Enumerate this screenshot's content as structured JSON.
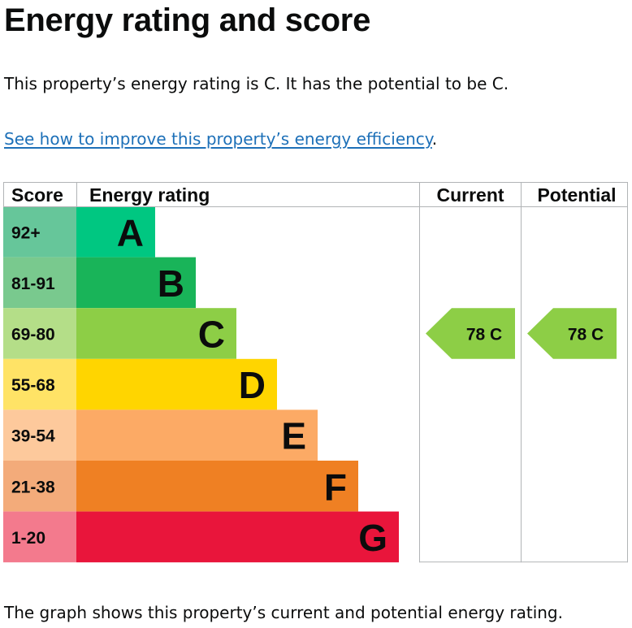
{
  "heading": "Energy rating and score",
  "summary": "This property’s energy rating is C. It has the potential to be C.",
  "improve_link": "See how to improve this property’s energy efficiency",
  "improve_link_suffix": ".",
  "footer": "The graph shows this property’s current and potential energy rating.",
  "chart_data": {
    "type": "bar",
    "columns": {
      "score": "Score",
      "rating": "Energy rating",
      "current": "Current",
      "potential": "Potential"
    },
    "bands": [
      {
        "range": "92+",
        "letter": "A",
        "score_color": "#66c69a",
        "bar_color": "#00c781"
      },
      {
        "range": "81-91",
        "letter": "B",
        "score_color": "#79c98e",
        "bar_color": "#19b459"
      },
      {
        "range": "69-80",
        "letter": "C",
        "score_color": "#b4de88",
        "bar_color": "#8dce46"
      },
      {
        "range": "55-68",
        "letter": "D",
        "score_color": "#ffe366",
        "bar_color": "#ffd500"
      },
      {
        "range": "39-54",
        "letter": "E",
        "score_color": "#fdc99c",
        "bar_color": "#fcaa65"
      },
      {
        "range": "21-38",
        "letter": "F",
        "score_color": "#f3ab7a",
        "bar_color": "#ef8023"
      },
      {
        "range": "1-20",
        "letter": "G",
        "score_color": "#f37a8d",
        "bar_color": "#e9153b"
      }
    ],
    "current": {
      "score": 78,
      "letter": "C",
      "label": "78  C",
      "color": "#8dce46"
    },
    "potential": {
      "score": 78,
      "letter": "C",
      "label": "78  C",
      "color": "#8dce46"
    }
  }
}
